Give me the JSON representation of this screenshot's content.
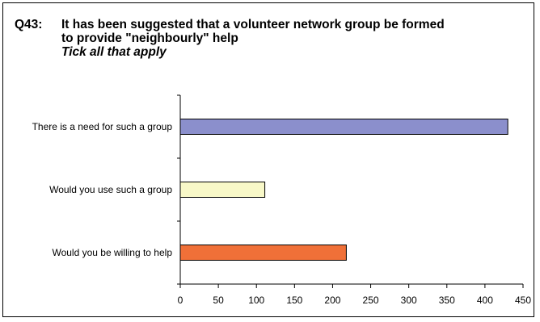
{
  "question": {
    "number": "Q43:",
    "lines": [
      "It has been suggested that a volunteer network group be formed",
      "to provide \"neighbourly\" help"
    ],
    "instruction": "Tick all that apply"
  },
  "chart_data": {
    "type": "bar",
    "orientation": "horizontal",
    "categories": [
      "There is a need for such a group",
      "Would you use such a group",
      "Would you be willing to help"
    ],
    "values": [
      430,
      111,
      218
    ],
    "colors": [
      "#8b8fcc",
      "#f8f8c8",
      "#f07038"
    ],
    "xlim": [
      0,
      450
    ],
    "xticks": [
      0,
      50,
      100,
      150,
      200,
      250,
      300,
      350,
      400,
      450
    ],
    "xtick_labels": [
      "0",
      "50",
      "100",
      "150",
      "200",
      "250",
      "300",
      "350",
      "400",
      "450"
    ],
    "grid": false,
    "legend": "none"
  }
}
